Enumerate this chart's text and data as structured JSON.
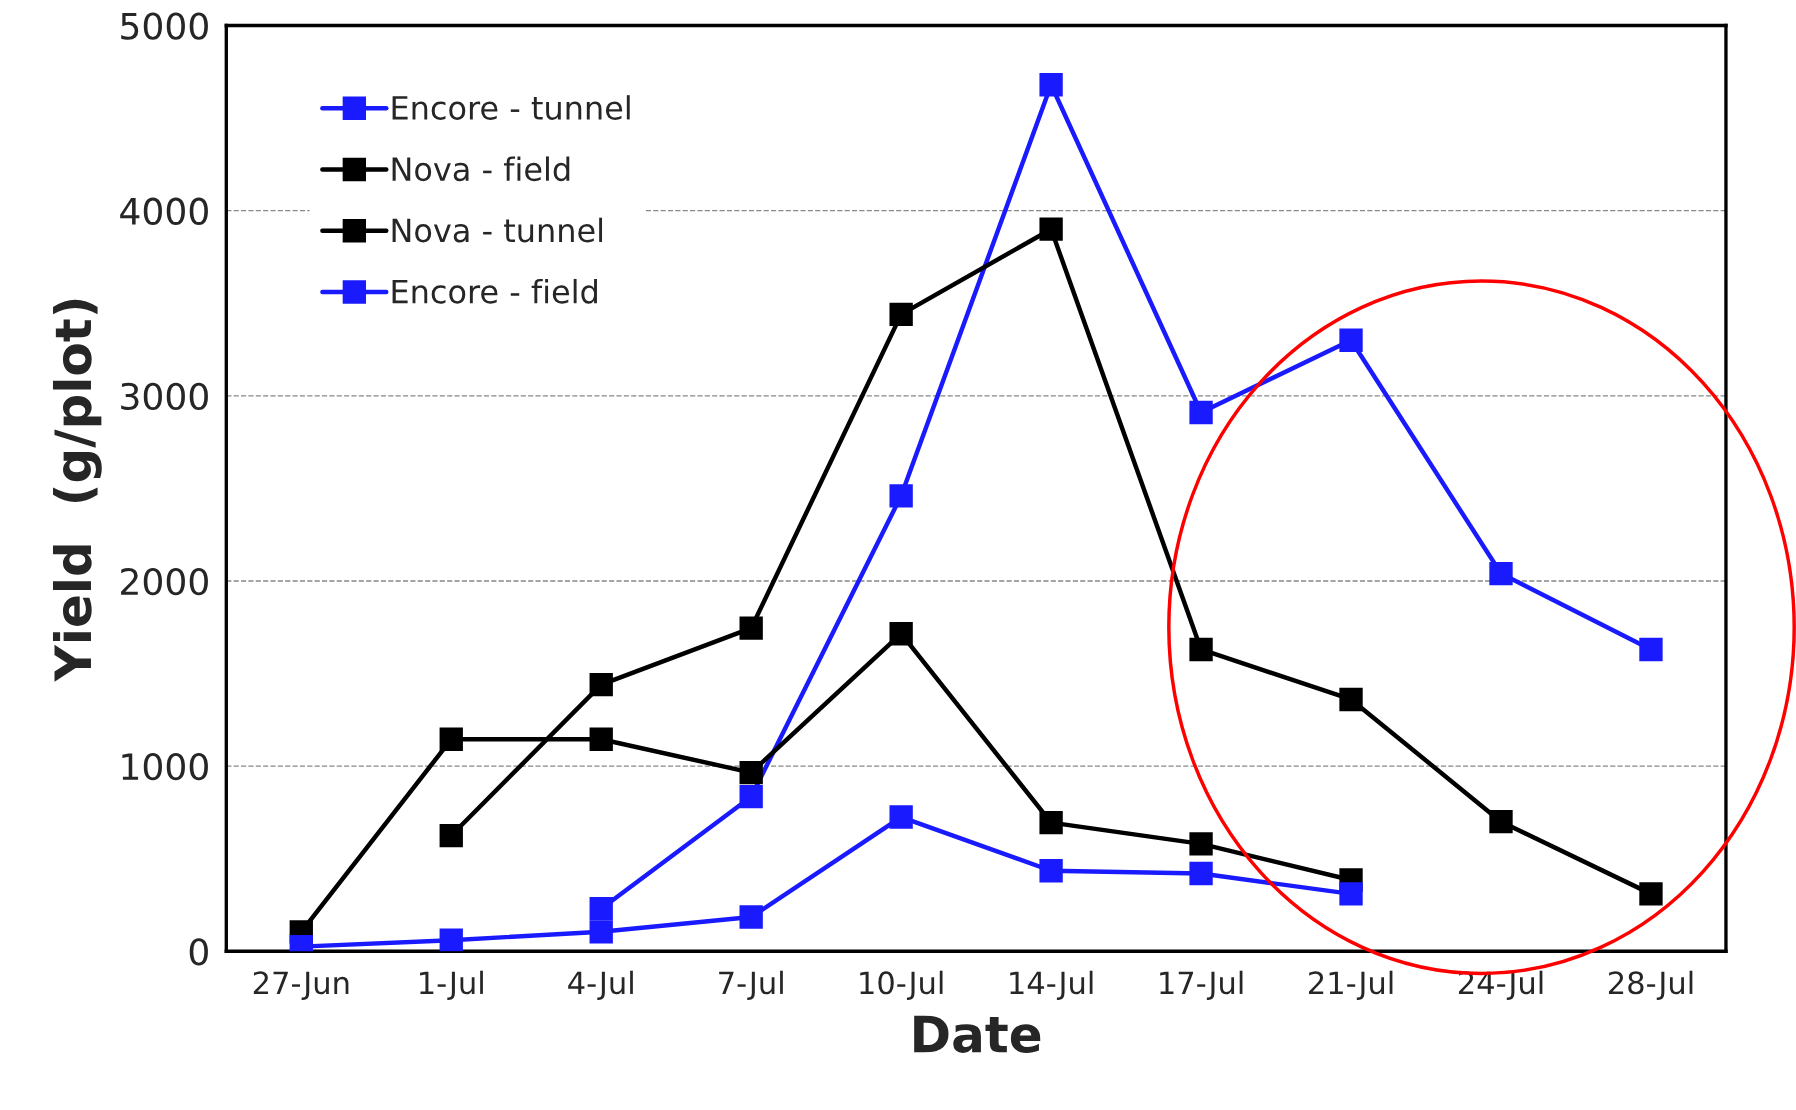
{
  "chart_data": {
    "type": "line",
    "xlabel": "Date",
    "ylabel": "Yield  (g/plot)",
    "categories": [
      "27-Jun",
      "1-Jul",
      "4-Jul",
      "7-Jul",
      "10-Jul",
      "14-Jul",
      "17-Jul",
      "21-Jul",
      "24-Jul",
      "28-Jul"
    ],
    "series": [
      {
        "name": "Encore - tunnel",
        "color": "#1a1aff",
        "values": [
          null,
          null,
          230,
          835,
          2460,
          4680,
          2910,
          3300,
          2040,
          1630
        ]
      },
      {
        "name": "Nova - field",
        "color": "#000000",
        "values": [
          105,
          1145,
          1145,
          965,
          1715,
          695,
          580,
          385,
          null,
          null
        ]
      },
      {
        "name": "Nova - tunnel",
        "color": "#000000",
        "values": [
          null,
          625,
          1440,
          1745,
          3440,
          3900,
          1630,
          1360,
          700,
          310
        ]
      },
      {
        "name": "Encore - field",
        "color": "#1a1aff",
        "values": [
          25,
          60,
          105,
          185,
          725,
          435,
          420,
          310,
          null,
          null
        ]
      }
    ],
    "ylim": [
      0,
      5000
    ],
    "yticks": [
      0,
      1000,
      2000,
      3000,
      4000,
      5000
    ],
    "grid": "y",
    "legend": "top left",
    "marker": "square",
    "line_style": "solid"
  }
}
